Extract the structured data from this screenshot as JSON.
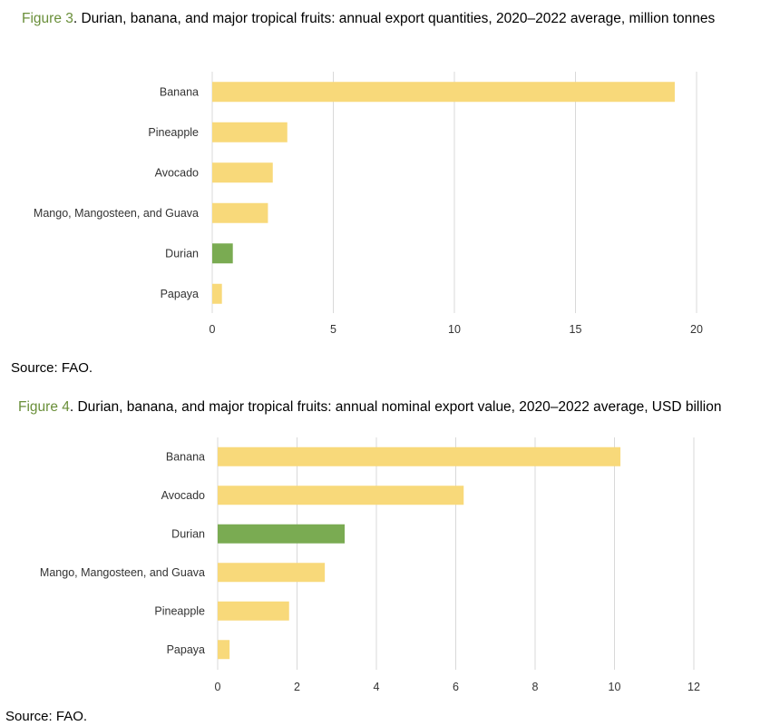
{
  "colors": {
    "default_bar": "#f8d97a",
    "highlight_bar": "#7aab52",
    "figure_label": "#6a8f3a",
    "grid": "#d9d9d9"
  },
  "figure3": {
    "label": "Figure 3",
    "caption": ". Durian, banana, and major tropical fruits: annual export quantities, 2020–2022 average, million tonnes",
    "source": "Source: FAO."
  },
  "figure4": {
    "label": "Figure 4",
    "caption": ". Durian, banana, and major tropical fruits: annual nominal export value, 2020–2022 average, USD billion",
    "source": "Source: FAO."
  },
  "chart_data": [
    {
      "type": "bar",
      "orientation": "horizontal",
      "title": "Durian, banana, and major tropical fruits: annual export quantities, 2020–2022 average, million tonnes",
      "categories": [
        "Banana",
        "Pineapple",
        "Avocado",
        "Mango, Mangosteen, and Guava",
        "Durian",
        "Papaya"
      ],
      "values": [
        19.1,
        3.1,
        2.5,
        2.3,
        0.85,
        0.4
      ],
      "highlight": [
        "Durian"
      ],
      "xlim": [
        0,
        20
      ],
      "ticks": [
        0,
        5,
        10,
        15,
        20
      ],
      "grid": true
    },
    {
      "type": "bar",
      "orientation": "horizontal",
      "title": "Durian, banana, and major tropical fruits: annual nominal export value, 2020–2022 average, USD billion",
      "categories": [
        "Banana",
        "Avocado",
        "Durian",
        "Mango, Mangosteen, and Guava",
        "Pineapple",
        "Papaya"
      ],
      "values": [
        10.15,
        6.2,
        3.2,
        2.7,
        1.8,
        0.3
      ],
      "highlight": [
        "Durian"
      ],
      "xlim": [
        0,
        12
      ],
      "ticks": [
        0,
        2,
        4,
        6,
        8,
        10,
        12
      ],
      "grid": true
    }
  ]
}
